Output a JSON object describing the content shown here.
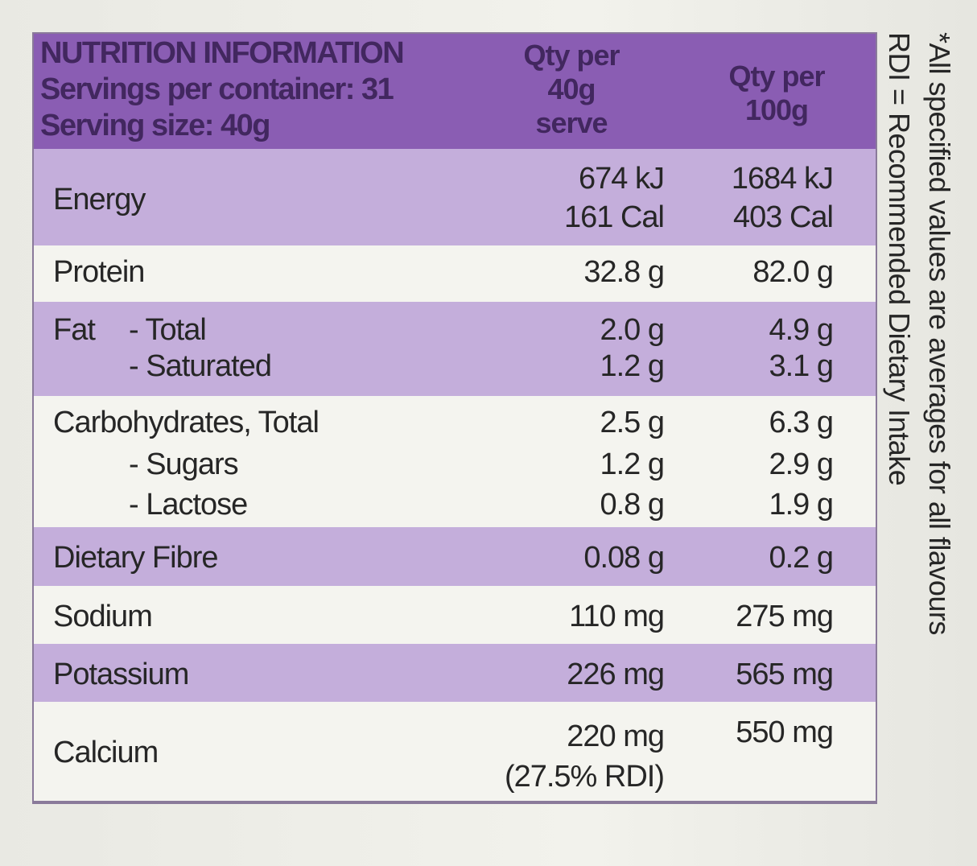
{
  "header": {
    "title": "NUTRITION INFORMATION",
    "servings": "Servings per container: 31",
    "serving_size": "Serving size: 40g",
    "col_serve": [
      "Qty per",
      "40g",
      "serve"
    ],
    "col_100g": [
      "Qty per",
      "100g"
    ]
  },
  "rows": [
    {
      "label": [
        "Energy"
      ],
      "serve": [
        "674 kJ",
        "161 Cal"
      ],
      "per100": [
        "1684 kJ",
        "403 Cal"
      ]
    },
    {
      "label": [
        "Protein"
      ],
      "serve": [
        "32.8 g"
      ],
      "per100": [
        "82.0 g"
      ]
    },
    {
      "label": [
        "Fat",
        "- Total",
        "- Saturated"
      ],
      "serve": [
        "2.0 g",
        "1.2 g"
      ],
      "per100": [
        "4.9 g",
        "3.1 g"
      ]
    },
    {
      "label": [
        "Carbohydrates, Total",
        "- Sugars",
        "- Lactose"
      ],
      "serve": [
        "2.5 g",
        "1.2 g",
        "0.8 g"
      ],
      "per100": [
        "6.3 g",
        "2.9 g",
        "1.9 g"
      ]
    },
    {
      "label": [
        "Dietary Fibre"
      ],
      "serve": [
        "0.08 g"
      ],
      "per100": [
        "0.2 g"
      ]
    },
    {
      "label": [
        "Sodium"
      ],
      "serve": [
        "110 mg"
      ],
      "per100": [
        "275 mg"
      ]
    },
    {
      "label": [
        "Potassium"
      ],
      "serve": [
        "226 mg"
      ],
      "per100": [
        "565 mg"
      ]
    },
    {
      "label": [
        "Calcium"
      ],
      "serve": [
        "220 mg",
        "(27.5% RDI)"
      ],
      "per100": [
        "550 mg"
      ]
    }
  ],
  "notes": [
    "*All specified values are averages for all flavours",
    "RDI = Recommended Dietary Intake"
  ]
}
